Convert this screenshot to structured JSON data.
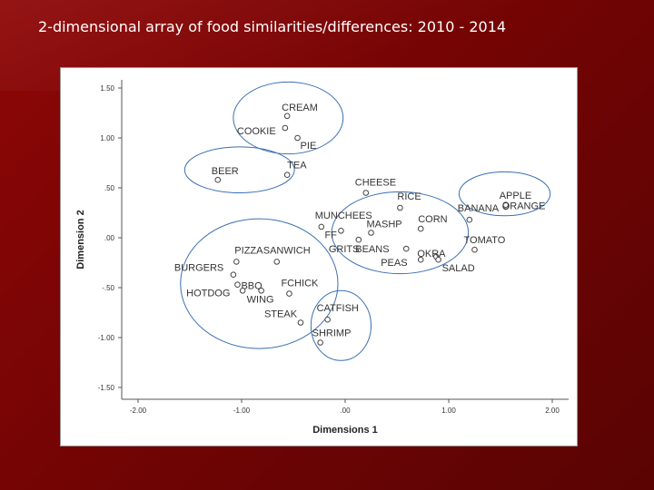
{
  "slide": {
    "title": "2-dimensional array of food similarities/differences: 2010 - 2014"
  },
  "chart_data": {
    "type": "scatter",
    "xlabel": "Dimensions 1",
    "ylabel": "Dimension 2",
    "xlim": [
      -2.2,
      2.2
    ],
    "ylim": [
      -1.65,
      1.6
    ],
    "xticks": [
      "-2.00",
      "-1.00",
      ".00",
      "1.00",
      "2.00"
    ],
    "yticks": [
      "1.50",
      "1.00",
      ".50",
      ".00",
      "-.50",
      "-1.00",
      "-1.50"
    ],
    "points": [
      {
        "label": "CREAM",
        "x": -0.56,
        "y": 1.22
      },
      {
        "label": "COOKIE",
        "x": -0.58,
        "y": 1.1
      },
      {
        "label": "PIE",
        "x": -0.46,
        "y": 1.0
      },
      {
        "label": "TEA",
        "x": -0.56,
        "y": 0.63
      },
      {
        "label": "BEER",
        "x": -1.23,
        "y": 0.58
      },
      {
        "label": "CHEESE",
        "x": 0.2,
        "y": 0.45
      },
      {
        "label": "RICE",
        "x": 0.53,
        "y": 0.3
      },
      {
        "label": "MUNCHEES",
        "x": -0.23,
        "y": 0.11
      },
      {
        "label": "FF",
        "x": -0.04,
        "y": 0.07
      },
      {
        "label": "MASHP",
        "x": 0.25,
        "y": 0.05
      },
      {
        "label": "CORN",
        "x": 0.73,
        "y": 0.09
      },
      {
        "label": "GRITS",
        "x": 0.13,
        "y": -0.02
      },
      {
        "label": "BEANS",
        "x": 0.59,
        "y": -0.11
      },
      {
        "label": "OKRA",
        "x": 0.88,
        "y": -0.19
      },
      {
        "label": "PEAS",
        "x": 0.73,
        "y": -0.22
      },
      {
        "label": "SALAD",
        "x": 0.9,
        "y": -0.22
      },
      {
        "label": "TOMATO",
        "x": 1.25,
        "y": -0.12
      },
      {
        "label": "BANANA",
        "x": 1.2,
        "y": 0.18
      },
      {
        "label": "APPLE",
        "x": 1.55,
        "y": 0.31
      },
      {
        "label": "ORANGE",
        "x": 1.55,
        "y": 0.33
      },
      {
        "label": "PIZZA",
        "x": -1.05,
        "y": -0.24
      },
      {
        "label": "SANWICH",
        "x": -0.66,
        "y": -0.24
      },
      {
        "label": "BURGERS",
        "x": -1.08,
        "y": -0.37
      },
      {
        "label": "BBQ",
        "x": -1.04,
        "y": -0.47
      },
      {
        "label": "HOTDOG",
        "x": -0.99,
        "y": -0.53
      },
      {
        "label": "WING",
        "x": -0.81,
        "y": -0.53
      },
      {
        "label": "FCHICK",
        "x": -0.54,
        "y": -0.56
      },
      {
        "label": "STEAK",
        "x": -0.43,
        "y": -0.85
      },
      {
        "label": "CATFISH",
        "x": -0.17,
        "y": -0.82
      },
      {
        "label": "SHRIMP",
        "x": -0.24,
        "y": -1.05
      }
    ],
    "ellipses": [
      {
        "cx": -0.55,
        "cy": 1.2,
        "rx": 0.53,
        "ry": 0.36
      },
      {
        "cx": -1.02,
        "cy": 0.68,
        "rx": 0.53,
        "ry": 0.23
      },
      {
        "cx": 0.53,
        "cy": 0.05,
        "rx": 0.66,
        "ry": 0.41
      },
      {
        "cx": 1.54,
        "cy": 0.44,
        "rx": 0.44,
        "ry": 0.22
      },
      {
        "cx": -0.83,
        "cy": -0.46,
        "rx": 0.76,
        "ry": 0.65
      },
      {
        "cx": -0.04,
        "cy": -0.88,
        "rx": 0.29,
        "ry": 0.35
      }
    ]
  }
}
